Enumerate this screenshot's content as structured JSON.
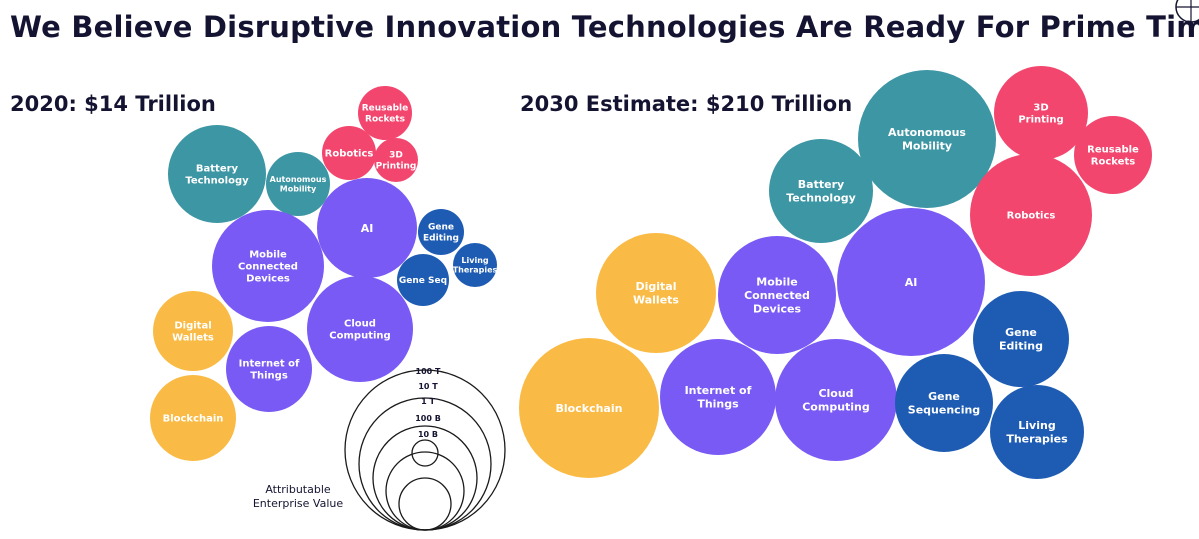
{
  "page_title": "We Believe Disruptive Innovation Technologies Are Ready For Prime Time",
  "colors": {
    "title": "#141432",
    "Blockchain": "#f9bb45",
    "Digital Wallets": "#f9bb45",
    "Mobile Connected Devices": "#7a5af5",
    "Internet of Things": "#7a5af5",
    "Cloud Computing": "#7a5af5",
    "AI": "#7a5af5",
    "Battery Technology": "#3d96a4",
    "Autonomous Mobility": "#3d96a4",
    "Robotics": "#f2466e",
    "Reusable Rockets": "#f2466e",
    "3D Printing": "#f2466e",
    "Gene Editing": "#1e5cb3",
    "Gene Sequencing": "#1e5cb3",
    "Living Therapies": "#1e5cb3"
  },
  "chart_data": [
    {
      "type": "bubble",
      "title": "2020: $14 Trillion",
      "value_unit": "Attributable Enterprise Value",
      "bubbles": [
        {
          "name": "Reusable Rockets",
          "label": [
            "Reusable",
            "Rockets"
          ]
        },
        {
          "name": "Robotics",
          "label": [
            "Robotics"
          ]
        },
        {
          "name": "3D Printing",
          "label": [
            "3D",
            "Printing"
          ]
        },
        {
          "name": "Battery Technology",
          "label": [
            "Battery",
            "Technology"
          ]
        },
        {
          "name": "Autonomous Mobility",
          "label": [
            "Autonomous",
            "Mobility"
          ]
        },
        {
          "name": "AI",
          "label": [
            "AI"
          ]
        },
        {
          "name": "Gene Editing",
          "label": [
            "Gene",
            "Editing"
          ]
        },
        {
          "name": "Mobile Connected Devices",
          "label": [
            "Mobile",
            "Connected",
            "Devices"
          ]
        },
        {
          "name": "Gene Sequencing",
          "label": [
            "Gene Seq"
          ]
        },
        {
          "name": "Living Therapies",
          "label": [
            "Living",
            "Therapies"
          ]
        },
        {
          "name": "Digital Wallets",
          "label": [
            "Digital",
            "Wallets"
          ]
        },
        {
          "name": "Cloud Computing",
          "label": [
            "Cloud",
            "Computing"
          ]
        },
        {
          "name": "Internet of Things",
          "label": [
            "Internet of",
            "Things"
          ]
        },
        {
          "name": "Blockchain",
          "label": [
            "Blockchain"
          ]
        }
      ]
    },
    {
      "type": "bubble",
      "title": "2030 Estimate: $210 Trillion",
      "value_unit": "Attributable Enterprise Value",
      "bubbles": [
        {
          "name": "Autonomous Mobility",
          "label": [
            "Autonomous",
            "Mobility"
          ]
        },
        {
          "name": "3D Printing",
          "label": [
            "3D",
            "Printing"
          ]
        },
        {
          "name": "Reusable Rockets",
          "label": [
            "Reusable",
            "Rockets"
          ]
        },
        {
          "name": "Battery Technology",
          "label": [
            "Battery",
            "Technology"
          ]
        },
        {
          "name": "Robotics",
          "label": [
            "Robotics"
          ]
        },
        {
          "name": "AI",
          "label": [
            "AI"
          ]
        },
        {
          "name": "Digital Wallets",
          "label": [
            "Digital",
            "Wallets"
          ]
        },
        {
          "name": "Mobile Connected Devices",
          "label": [
            "Mobile",
            "Connected",
            "Devices"
          ]
        },
        {
          "name": "Gene Editing",
          "label": [
            "Gene",
            "Editing"
          ]
        },
        {
          "name": "Blockchain",
          "label": [
            "Blockchain"
          ]
        },
        {
          "name": "Internet of Things",
          "label": [
            "Internet of",
            "Things"
          ]
        },
        {
          "name": "Cloud Computing",
          "label": [
            "Cloud",
            "Computing"
          ]
        },
        {
          "name": "Gene Sequencing",
          "label": [
            "Gene",
            "Sequencing"
          ]
        },
        {
          "name": "Living Therapies",
          "label": [
            "Living",
            "Therapies"
          ]
        }
      ]
    }
  ],
  "legend": {
    "title_lines": [
      "Attributable",
      "Enterprise Value"
    ],
    "rings": [
      "100 T",
      "10 T",
      "1 T",
      "100 B",
      "10 B"
    ]
  }
}
